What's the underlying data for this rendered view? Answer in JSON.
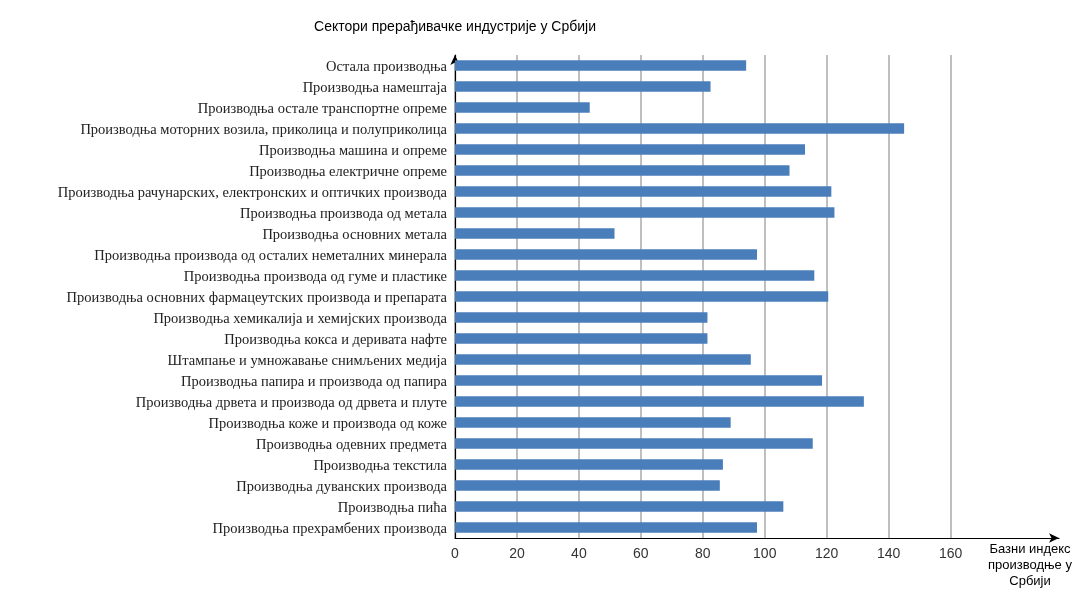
{
  "chart_data": {
    "type": "bar",
    "orientation": "horizontal",
    "ylabel": "Сектори прерађивачке индустрије у Србији",
    "xlabel": "Базни индекс производње у Србији",
    "categories": [
      "Остала производња",
      "Производња намештаја",
      "Производња остале транспортне опреме",
      "Производња моторних возила, приколица и полуприколица",
      "Производња машина и опреме",
      "Производња електричне опреме",
      "Производња рачунарских, електронских и оптичких производа",
      "Производња производа од метала",
      "Производња основних метала",
      "Производња производа од осталих неметалних минерала",
      "Производња производа од гуме и пластике",
      "Производња основних фармацеутских производа и препарата",
      "Производња хемикалија и хемијских производа",
      "Производња кокса и деривата нафте",
      "Штампање и умножавање снимљених медија",
      "Производња папира и производа од папира",
      "Производња дрвета и производа од дрвета и плуте",
      "Производња коже и производа од коже",
      "Производња одевних предмета",
      "Производња текстила",
      "Производња дуванских производа",
      "Производња пића",
      "Производња прехрамбених производа"
    ],
    "values": [
      94,
      82.5,
      43.5,
      145,
      113,
      108,
      121.5,
      122.5,
      51.5,
      97.5,
      116,
      120.5,
      81.5,
      81.5,
      95.5,
      118.5,
      132,
      89,
      115.5,
      86.5,
      85.5,
      106,
      97.5
    ],
    "color": "#4a7ebb",
    "xlim": [
      0,
      195
    ],
    "xticks": [
      0,
      20,
      40,
      60,
      80,
      100,
      120,
      140,
      160
    ],
    "grid": "x"
  }
}
